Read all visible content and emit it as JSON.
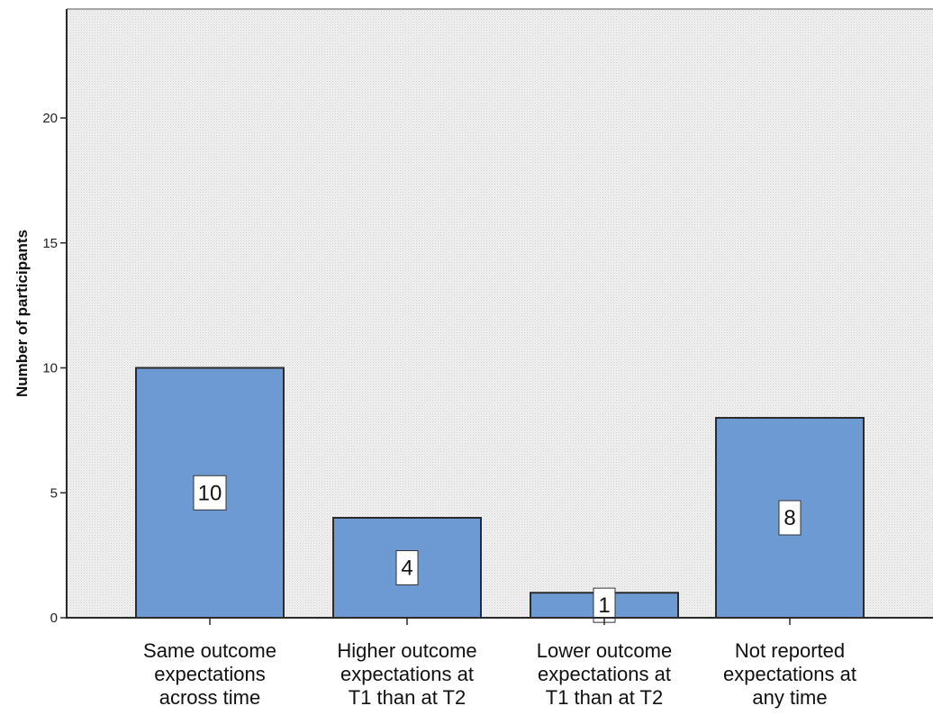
{
  "chart_data": {
    "type": "bar",
    "title": "",
    "xlabel": "",
    "ylabel": "Number of participants",
    "categories": [
      [
        "Same outcome",
        "expectations",
        "across time"
      ],
      [
        "Higher outcome",
        "expectations at",
        "T1 than at T2"
      ],
      [
        "Lower outcome",
        "expectations at",
        "T1 than at T2"
      ],
      [
        "Not reported",
        "expectations at",
        "any time"
      ]
    ],
    "values": [
      10,
      4,
      1,
      8
    ],
    "data_labels": [
      "10",
      "4",
      "1",
      "8"
    ],
    "ylim": [
      0,
      24.4
    ],
    "yticks": [
      0,
      5,
      10,
      15,
      20
    ],
    "ytick_labels": [
      "0",
      "5",
      "10",
      "15",
      "20"
    ],
    "grid": false,
    "legend": "none",
    "colors": {
      "bar_fill": "#6d9ad3",
      "bar_stroke": "#2b2b2b",
      "plot_background": "#ebebeb",
      "plot_pattern": "#d2d2d2",
      "axis": "#2b2b2b",
      "label_box": "#ffffff"
    }
  }
}
